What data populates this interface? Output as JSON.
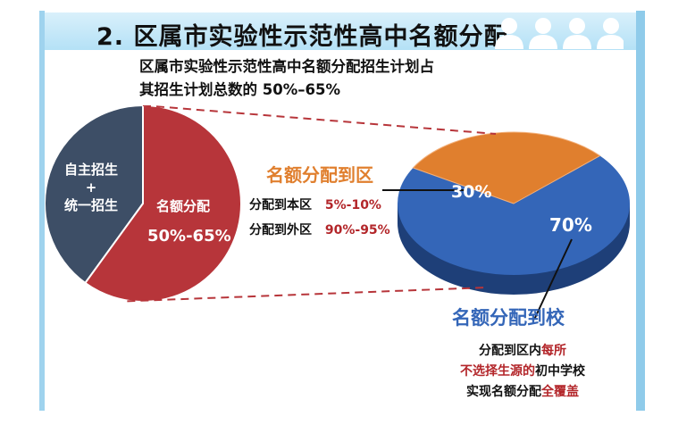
{
  "header": {
    "title": "2. 区属市实验性示范性高中名额分配"
  },
  "subtitle": {
    "line1": "区属市实验性示范性高中名额分配招生计划占",
    "line2": "其招生计划总数的 50%–65%"
  },
  "chart_data": [
    {
      "type": "pie",
      "slices": [
        {
          "label": "名额分配",
          "value_label": "50%-65%",
          "value": 60,
          "color": "#b7353a"
        },
        {
          "label": "自主招生 + 统一招生",
          "value": 40,
          "color": "#3d4e66"
        }
      ],
      "labels": {
        "left_line1": "自主招生",
        "left_plus": "+",
        "left_line2": "统一招生",
        "right_name": "名额分配",
        "right_value": "50%-65%"
      }
    },
    {
      "type": "pie",
      "slices": [
        {
          "label": "名额分配到区",
          "value": 30,
          "color": "#e07f2e",
          "value_label": "30%"
        },
        {
          "label": "名额分配到校",
          "value": 70,
          "color": "#3466b8",
          "value_label": "70%"
        }
      ]
    }
  ],
  "district": {
    "title": "名额分配到区",
    "row1_label": "分配到本区",
    "row1_value": "5%-10%",
    "row2_label": "分配到外区",
    "row2_value": "90%-95%"
  },
  "school": {
    "title": "名额分配到校",
    "line1_a": "分配到区内",
    "line1_b": "每所",
    "line2_a": "不选择生源的",
    "line2_b": "初中学校",
    "line3_a": "实现名额分配",
    "line3_b": "全覆盖"
  },
  "colors": {
    "red": "#b7353a",
    "navy": "#3d4e66",
    "orange": "#e07f2e",
    "blue": "#3466b8",
    "highlight_red": "#b3262a",
    "light_blue_banner": "#b4e1f6"
  }
}
